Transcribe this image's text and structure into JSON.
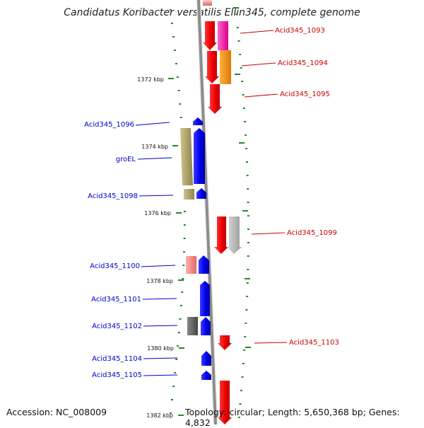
{
  "header": {
    "title": "Candidatus Koribacter versatilis Ellin345, complete genome"
  },
  "footer": {
    "accession": "Accession: NC_008009",
    "topology": "Topology: circular; Length: 5,650,368 bp; Genes: 4,832"
  },
  "colors": {
    "forward": "#cc0000",
    "reverse": "#0000cc",
    "backbone": "#8c8c8c",
    "tick": "#228b22"
  },
  "scale": {
    "unit": "kbp",
    "labels": [
      "1372 kbp",
      "1374 kbp",
      "1376 kbp",
      "1378 kbp",
      "1380 kbp",
      "1382 kbp"
    ]
  },
  "genes": [
    {
      "id": "Acid345_1093",
      "strand": "forward"
    },
    {
      "id": "Acid345_1094",
      "strand": "forward"
    },
    {
      "id": "Acid345_1095",
      "strand": "forward"
    },
    {
      "id": "Acid345_1096",
      "strand": "reverse"
    },
    {
      "id": "groEL",
      "strand": "reverse"
    },
    {
      "id": "Acid345_1098",
      "strand": "reverse"
    },
    {
      "id": "Acid345_1099",
      "strand": "forward"
    },
    {
      "id": "Acid345_1100",
      "strand": "reverse"
    },
    {
      "id": "Acid345_1101",
      "strand": "reverse"
    },
    {
      "id": "Acid345_1102",
      "strand": "reverse"
    },
    {
      "id": "Acid345_1103",
      "strand": "forward"
    },
    {
      "id": "Acid345_1104",
      "strand": "reverse"
    },
    {
      "id": "Acid345_1105",
      "strand": "reverse"
    }
  ]
}
